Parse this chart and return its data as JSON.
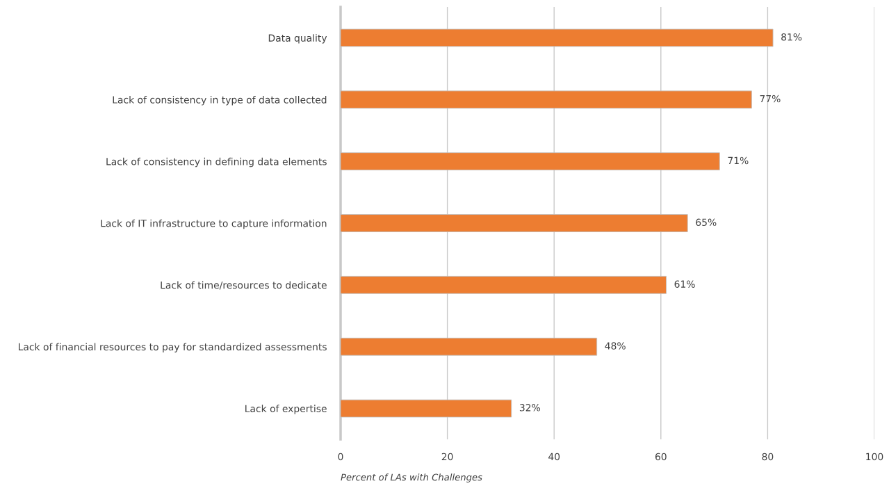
{
  "chart_data": {
    "type": "bar",
    "orientation": "horizontal",
    "xlabel": "Percent of LAs with Challenges",
    "categories": [
      "Data quality",
      "Lack of consistency in type of data collected",
      "Lack of consistency in defining data elements",
      "Lack of IT infrastructure to capture information",
      "Lack of time/resources to dedicate",
      "Lack of financial resources to pay for standardized assessments",
      "Lack of expertise"
    ],
    "values": [
      81,
      77,
      71,
      65,
      61,
      48,
      32
    ],
    "value_labels": [
      "81%",
      "77%",
      "71%",
      "65%",
      "61%",
      "48%",
      "32%"
    ],
    "color": "#ed7d31",
    "xlim": [
      0,
      100
    ],
    "xticks": [
      0,
      20,
      40,
      60,
      80,
      100
    ],
    "grid": "x",
    "legend": false
  }
}
